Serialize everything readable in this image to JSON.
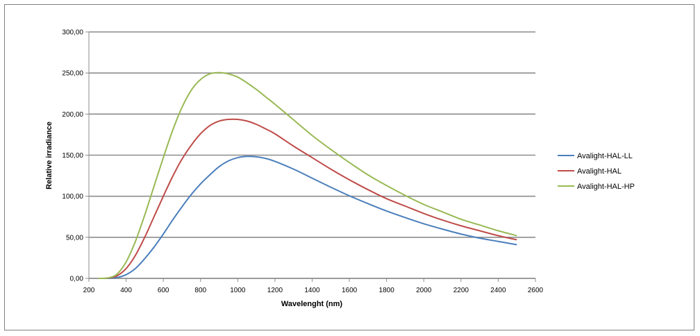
{
  "chart_data": {
    "type": "line",
    "title": "",
    "xlabel": "Wavelenght (nm)",
    "ylabel": "Relative irradiance",
    "xlim": [
      200,
      2600
    ],
    "ylim": [
      0,
      300
    ],
    "x_ticks": [
      "200",
      "400",
      "600",
      "800",
      "1000",
      "1200",
      "1400",
      "1600",
      "1800",
      "2000",
      "2200",
      "2400",
      "2600"
    ],
    "y_ticks": [
      "0,00",
      "50,00",
      "100,00",
      "150,00",
      "200,00",
      "250,00",
      "300,00"
    ],
    "grid": "horizontal",
    "legend_position": "right",
    "x": [
      250,
      300,
      350,
      400,
      450,
      500,
      550,
      600,
      650,
      700,
      750,
      800,
      850,
      900,
      950,
      1000,
      1050,
      1100,
      1150,
      1200,
      1300,
      1400,
      1500,
      1600,
      1700,
      1800,
      1900,
      2000,
      2100,
      2200,
      2300,
      2400,
      2500
    ],
    "series": [
      {
        "name": "Avalight-HAL-LL",
        "color": "#4a7ebb",
        "values": [
          0,
          0.1,
          1,
          4.5,
          12,
          24,
          38,
          54,
          71,
          87,
          102,
          115,
          126,
          136,
          143,
          147,
          148.5,
          148,
          146,
          142.5,
          133,
          122,
          111,
          100.5,
          91,
          82,
          74,
          66.5,
          60,
          54,
          49,
          45,
          41
        ]
      },
      {
        "name": "Avalight-HAL",
        "color": "#be4b48",
        "values": [
          0,
          0.3,
          3,
          12,
          28,
          50,
          75,
          100,
          124,
          145,
          162,
          176,
          186,
          191.5,
          193.5,
          193.5,
          191.5,
          187.5,
          182,
          176,
          161,
          147,
          133,
          120,
          108,
          97,
          88,
          79,
          71,
          64,
          58,
          52,
          47
        ]
      },
      {
        "name": "Avalight-HAL-HP",
        "color": "#98b954",
        "values": [
          0,
          0.5,
          5,
          20,
          45,
          77,
          112,
          147,
          180,
          208,
          229,
          242,
          249,
          250.5,
          249,
          245,
          238,
          230,
          221,
          212,
          193,
          174,
          157,
          141,
          126,
          113,
          101,
          90,
          81,
          72,
          65,
          58,
          52
        ]
      }
    ]
  }
}
